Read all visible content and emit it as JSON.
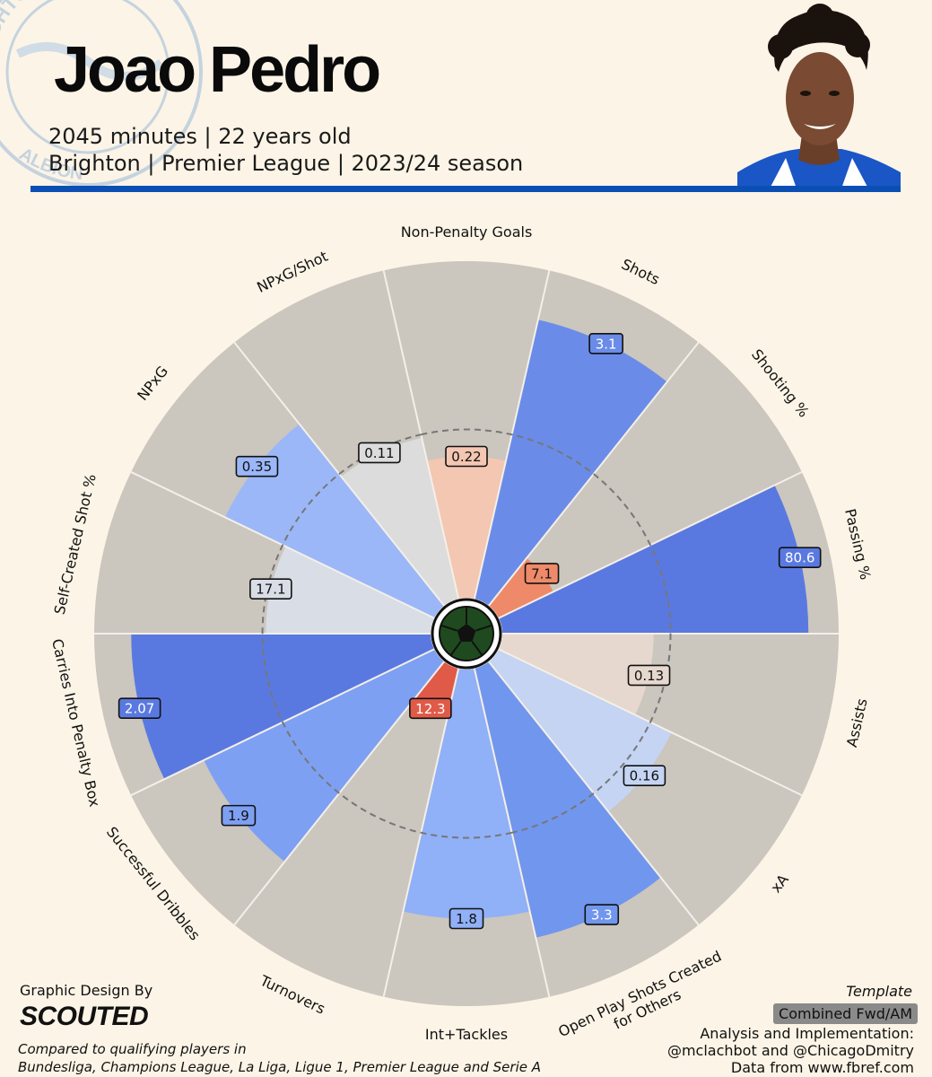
{
  "header": {
    "player_name": "Joao Pedro",
    "line1": "2045 minutes | 22 years old",
    "line2": "Brighton | Premier League | 2023/24 season"
  },
  "crest": {
    "top_text": "BRIGHTON & HOVE",
    "bottom_text": "ALBION"
  },
  "colors": {
    "background": "#fcf4e6",
    "slice_background": "#cbc6be",
    "accent_blue": "#0b4fb5",
    "dashed_ring": "#777777"
  },
  "chart_data": {
    "type": "pizza",
    "center_icon": "football-icon",
    "categories": [
      {
        "label": "Non-Penalty Goals",
        "value": "0.22",
        "percentile": 42,
        "color": "#f3c7b2"
      },
      {
        "label": "Shots",
        "value": "3.1",
        "percentile": 85,
        "color": "#6a8ce8"
      },
      {
        "label": "Shooting %",
        "value": "7.1",
        "percentile": 18,
        "color": "#ee8a6a"
      },
      {
        "label": "Passing %",
        "value": "80.6",
        "percentile": 91,
        "color": "#5a79e0"
      },
      {
        "label": "Assists",
        "value": "0.13",
        "percentile": 45,
        "color": "#e6d8ce"
      },
      {
        "label": "xA",
        "value": "0.16",
        "percentile": 57,
        "color": "#c4d4f2"
      },
      {
        "label": "Open Play Shots Created for Others",
        "value": "3.3",
        "percentile": 82,
        "color": "#7196ed"
      },
      {
        "label": "Int+Tackles",
        "value": "1.8",
        "percentile": 74,
        "color": "#90b0f7"
      },
      {
        "label": "Turnovers",
        "value": "12.3",
        "percentile": 14,
        "color": "#e05a48"
      },
      {
        "label": "Successful Dribbles",
        "value": "1.9",
        "percentile": 76,
        "color": "#7ea0f3"
      },
      {
        "label": "Carries Into Penalty Box",
        "value": "2.07",
        "percentile": 89,
        "color": "#5a79e0"
      },
      {
        "label": "Self-Created Shot %",
        "value": "17.1",
        "percentile": 49,
        "color": "#d8dde6"
      },
      {
        "label": "NPxG",
        "value": "0.35",
        "percentile": 69,
        "color": "#9bb7f8"
      },
      {
        "label": "NPxG/Shot",
        "value": "0.11",
        "percentile": 49,
        "color": "#dcdcdc"
      }
    ],
    "dashed_ring_groups": [
      {
        "start": 0,
        "end": 4,
        "percentile": 50
      },
      {
        "start": 4,
        "end": 7,
        "percentile": 50
      },
      {
        "start": 7,
        "end": 14,
        "percentile": 50
      }
    ],
    "range": [
      0,
      100
    ]
  },
  "footer": {
    "design_by": "Graphic Design By",
    "logo_text": "SCOUTED",
    "compare_line1": "Compared to qualifying players in",
    "compare_line2": "Bundesliga, Champions League, La Liga, Ligue 1, Premier League and Serie A",
    "template_label": "Template",
    "template_name": "Combined Fwd/AM",
    "analysis_line1": "Analysis and Implementation:",
    "analysis_line2": "@mclachbot and @ChicagoDmitry",
    "analysis_line3": "Data from www.fbref.com"
  }
}
